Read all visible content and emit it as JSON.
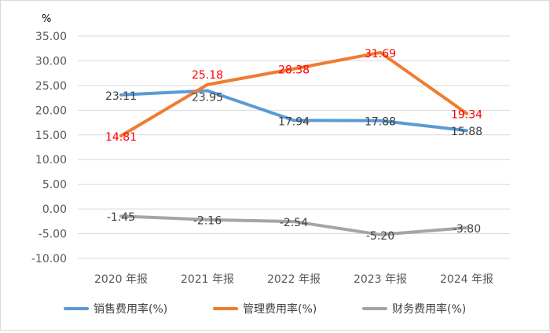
{
  "chart_data": {
    "type": "line",
    "unit_label": "%",
    "categories": [
      "2020 年报",
      "2021 年报",
      "2022 年报",
      "2023 年报",
      "2024 年报"
    ],
    "ylim": [
      -10,
      35
    ],
    "ytick_step": 5,
    "ytick_labels": [
      "35.00",
      "30.00",
      "25.00",
      "20.00",
      "15.00",
      "10.00",
      "5.00",
      "0.00",
      "-5.00",
      "-10.00"
    ],
    "grid": true,
    "legend_position": "bottom",
    "series": [
      {
        "name": "销售费用率(%)",
        "color": "#5b9bd5",
        "label_color": "#404040",
        "values": [
          23.11,
          23.95,
          17.94,
          17.88,
          15.88
        ],
        "labels": [
          "23.11",
          "23.95",
          "17.94",
          "17.88",
          "15.88"
        ]
      },
      {
        "name": "管理费用率(%)",
        "color": "#ed7d31",
        "label_color": "#ff0000",
        "values": [
          14.81,
          25.18,
          28.38,
          31.69,
          19.34
        ],
        "labels": [
          "14.81",
          "25.18",
          "28.38",
          "31.69",
          "19.34"
        ]
      },
      {
        "name": "财务费用率(%)",
        "color": "#a5a5a5",
        "label_color": "#404040",
        "values": [
          -1.45,
          -2.16,
          -2.54,
          -5.2,
          -3.8
        ],
        "labels": [
          "-1.45",
          "-2.16",
          "-2.54",
          "-5.20",
          "-3.80"
        ]
      }
    ]
  }
}
